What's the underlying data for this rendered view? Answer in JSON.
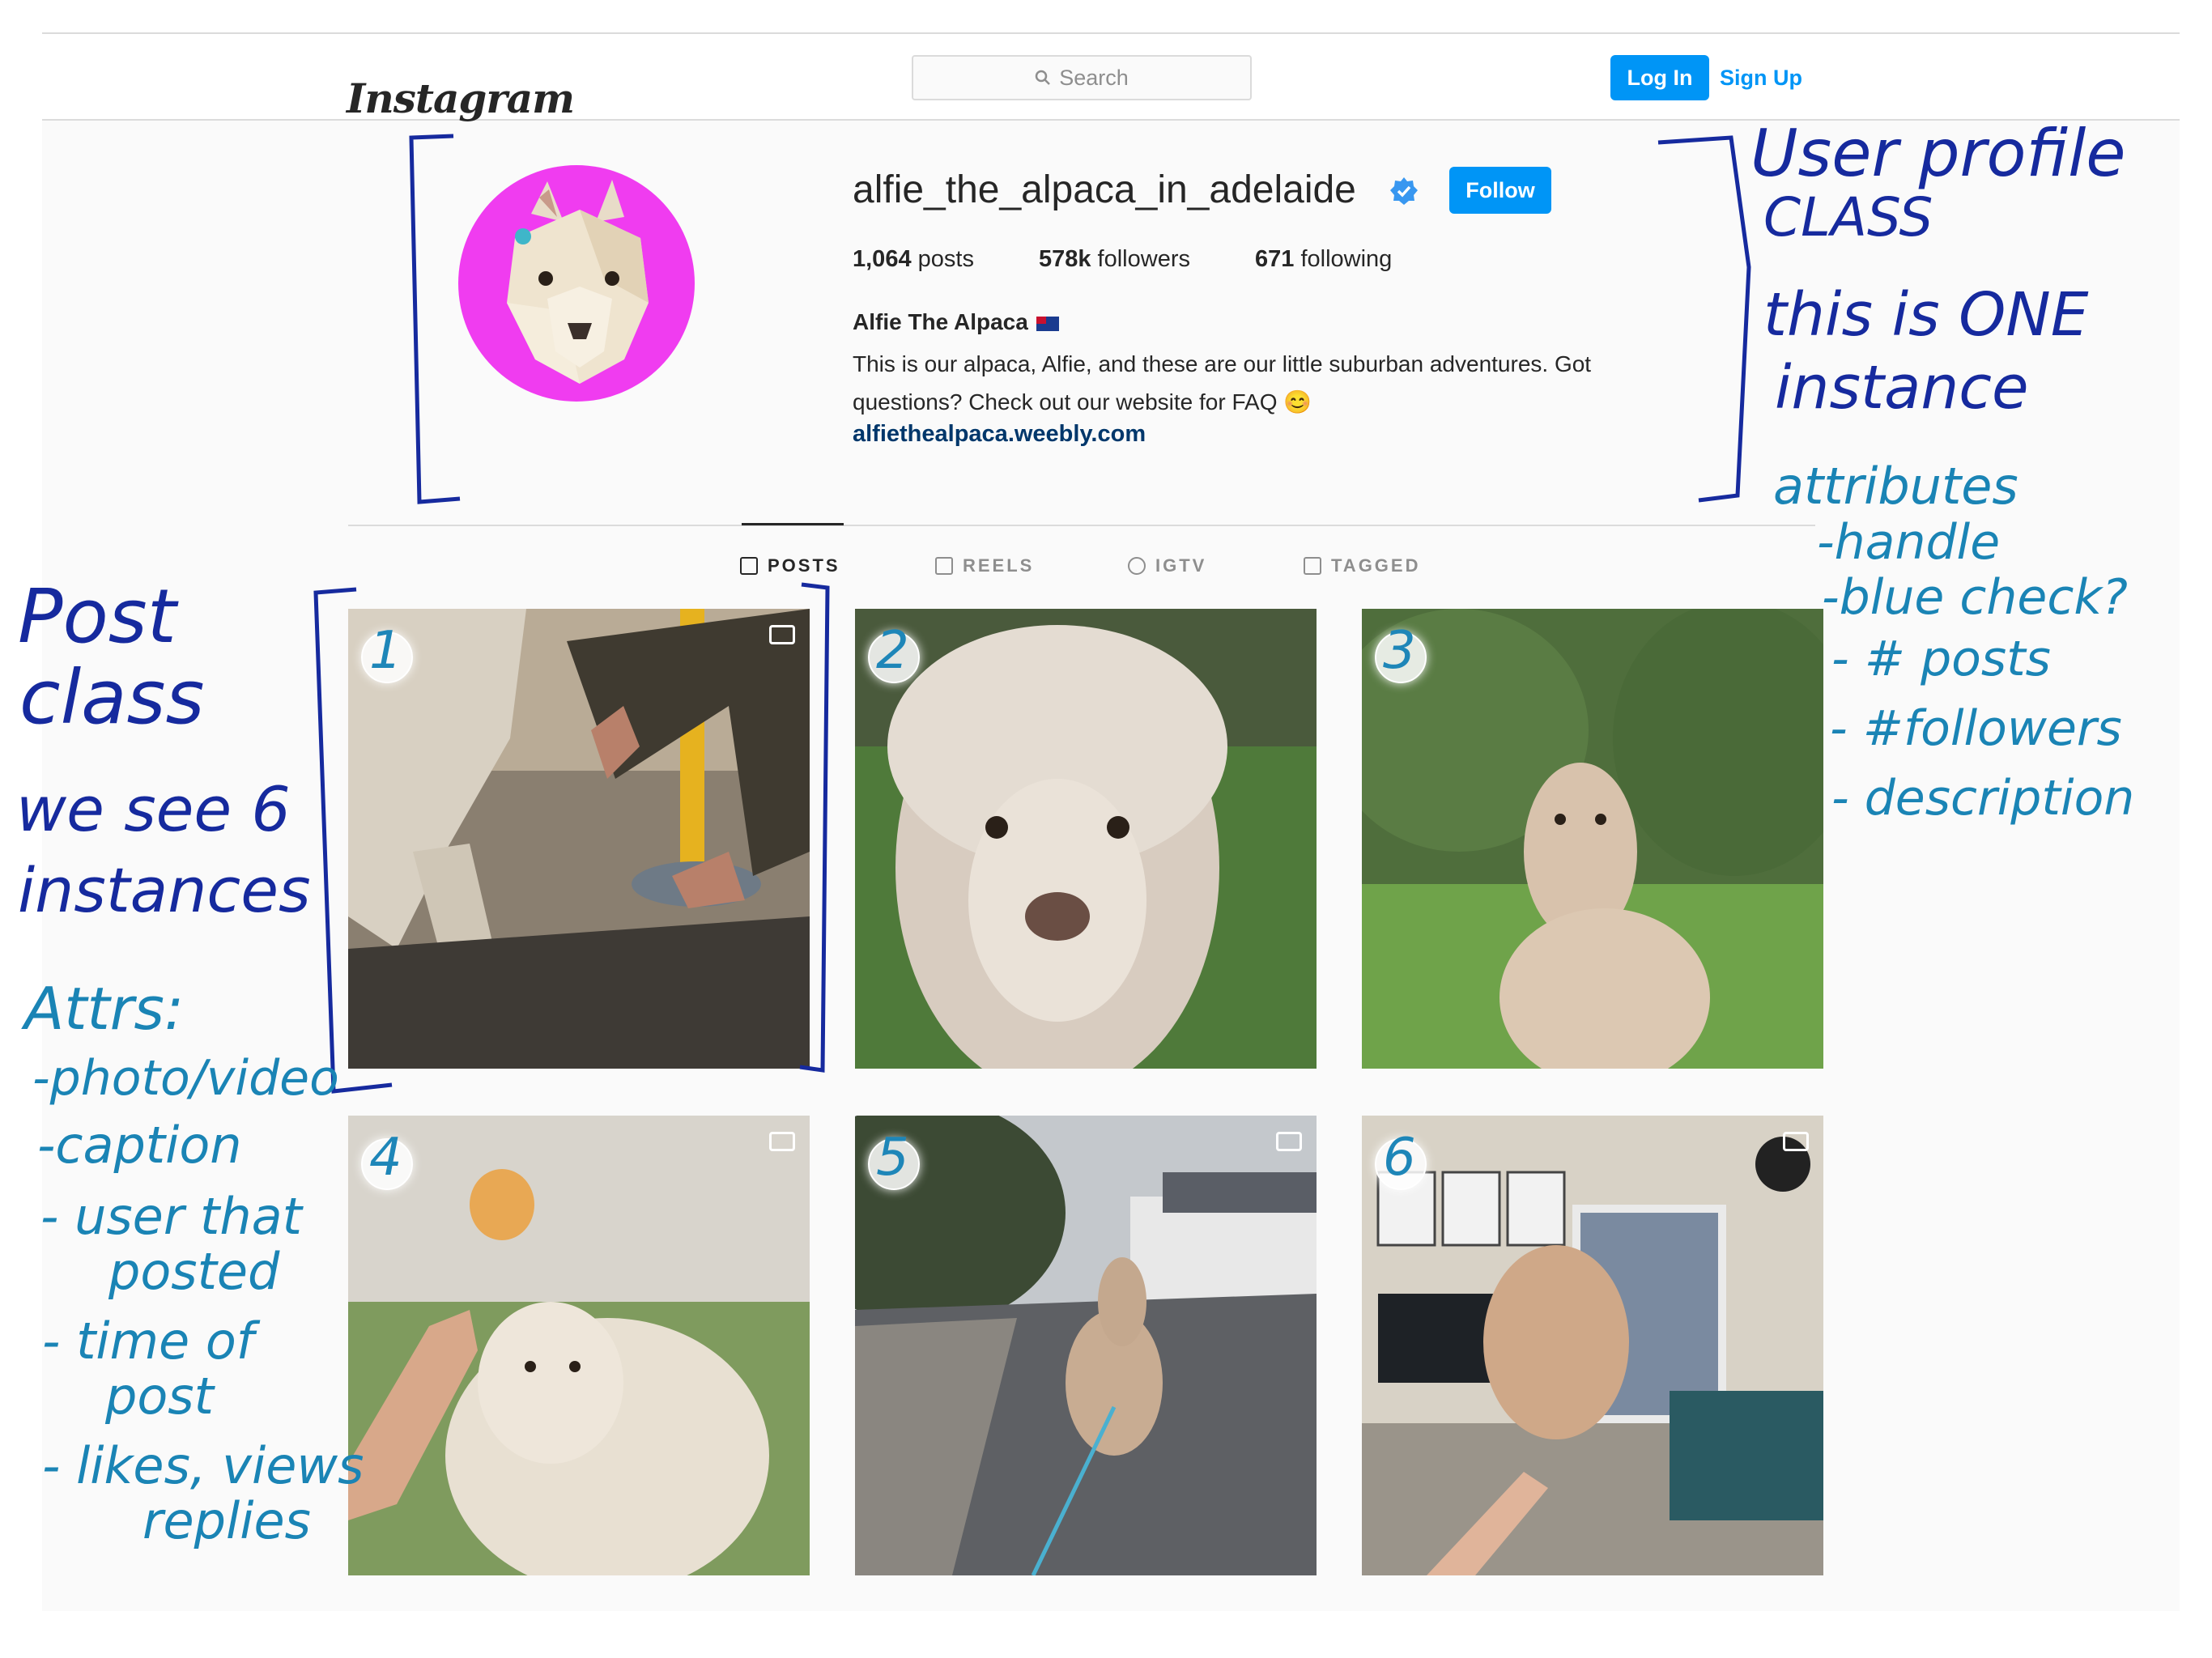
{
  "app": {
    "logo": "Instagram"
  },
  "navbar": {
    "search_placeholder": "Search",
    "login_label": "Log In",
    "signup_label": "Sign Up"
  },
  "profile": {
    "handle": "alfie_the_alpaca_in_adelaide",
    "verified": true,
    "follow_label": "Follow",
    "stats": {
      "posts_count": "1,064",
      "posts_label": "posts",
      "followers_count": "578k",
      "followers_label": "followers",
      "following_count": "671",
      "following_label": "following"
    },
    "name": "Alfie The Alpaca",
    "bio_line1": "This is our alpaca, Alfie, and these are our little suburban adventures. Got",
    "bio_line2": "questions? Check out our website for FAQ 😊",
    "website": "alfiethealpaca.weebly.com"
  },
  "tabs": [
    {
      "label": "POSTS",
      "icon": "grid-icon",
      "active": true
    },
    {
      "label": "REELS",
      "icon": "reels-icon",
      "active": false
    },
    {
      "label": "IGTV",
      "icon": "igtv-icon",
      "active": false
    },
    {
      "label": "TAGGED",
      "icon": "tagged-icon",
      "active": false
    }
  ],
  "posts": [
    {
      "number": "1",
      "type": "carousel",
      "scene": "alpaca leg and person touching hoof by yellow pole"
    },
    {
      "number": "2",
      "type": "photo",
      "scene": "alpaca face close-up on grass"
    },
    {
      "number": "3",
      "type": "photo",
      "scene": "alpaca in park with trees"
    },
    {
      "number": "4",
      "type": "video",
      "scene": "hand tossing ball to alpaca"
    },
    {
      "number": "5",
      "type": "video",
      "scene": "alpaca on leash walking on suburban street"
    },
    {
      "number": "6",
      "type": "video",
      "scene": "alpaca eating treat in living room"
    }
  ],
  "annotations": {
    "user_profile": {
      "title_line1": "User profile",
      "title_line2": "CLASS",
      "note_line1": "this is ONE",
      "note_line2": "instance",
      "attrs_title": "attributes",
      "attrs": [
        "-handle",
        "-blue check?",
        "- # posts",
        "- #followers",
        "- description"
      ]
    },
    "post": {
      "title_line1": "Post",
      "title_line2": "class",
      "note_line1": "we see 6",
      "note_line2": "instances",
      "attrs_title": "Attrs:",
      "attrs": [
        "-photo/video",
        "-caption",
        "- user that",
        "posted",
        "- time of",
        "post",
        "- likes, views",
        "replies"
      ]
    }
  },
  "colors": {
    "accent": "#0095f6",
    "annotation_blue": "#162a9e",
    "annotation_teal": "#1a84b5",
    "avatar_bg": "#f03cf0"
  }
}
